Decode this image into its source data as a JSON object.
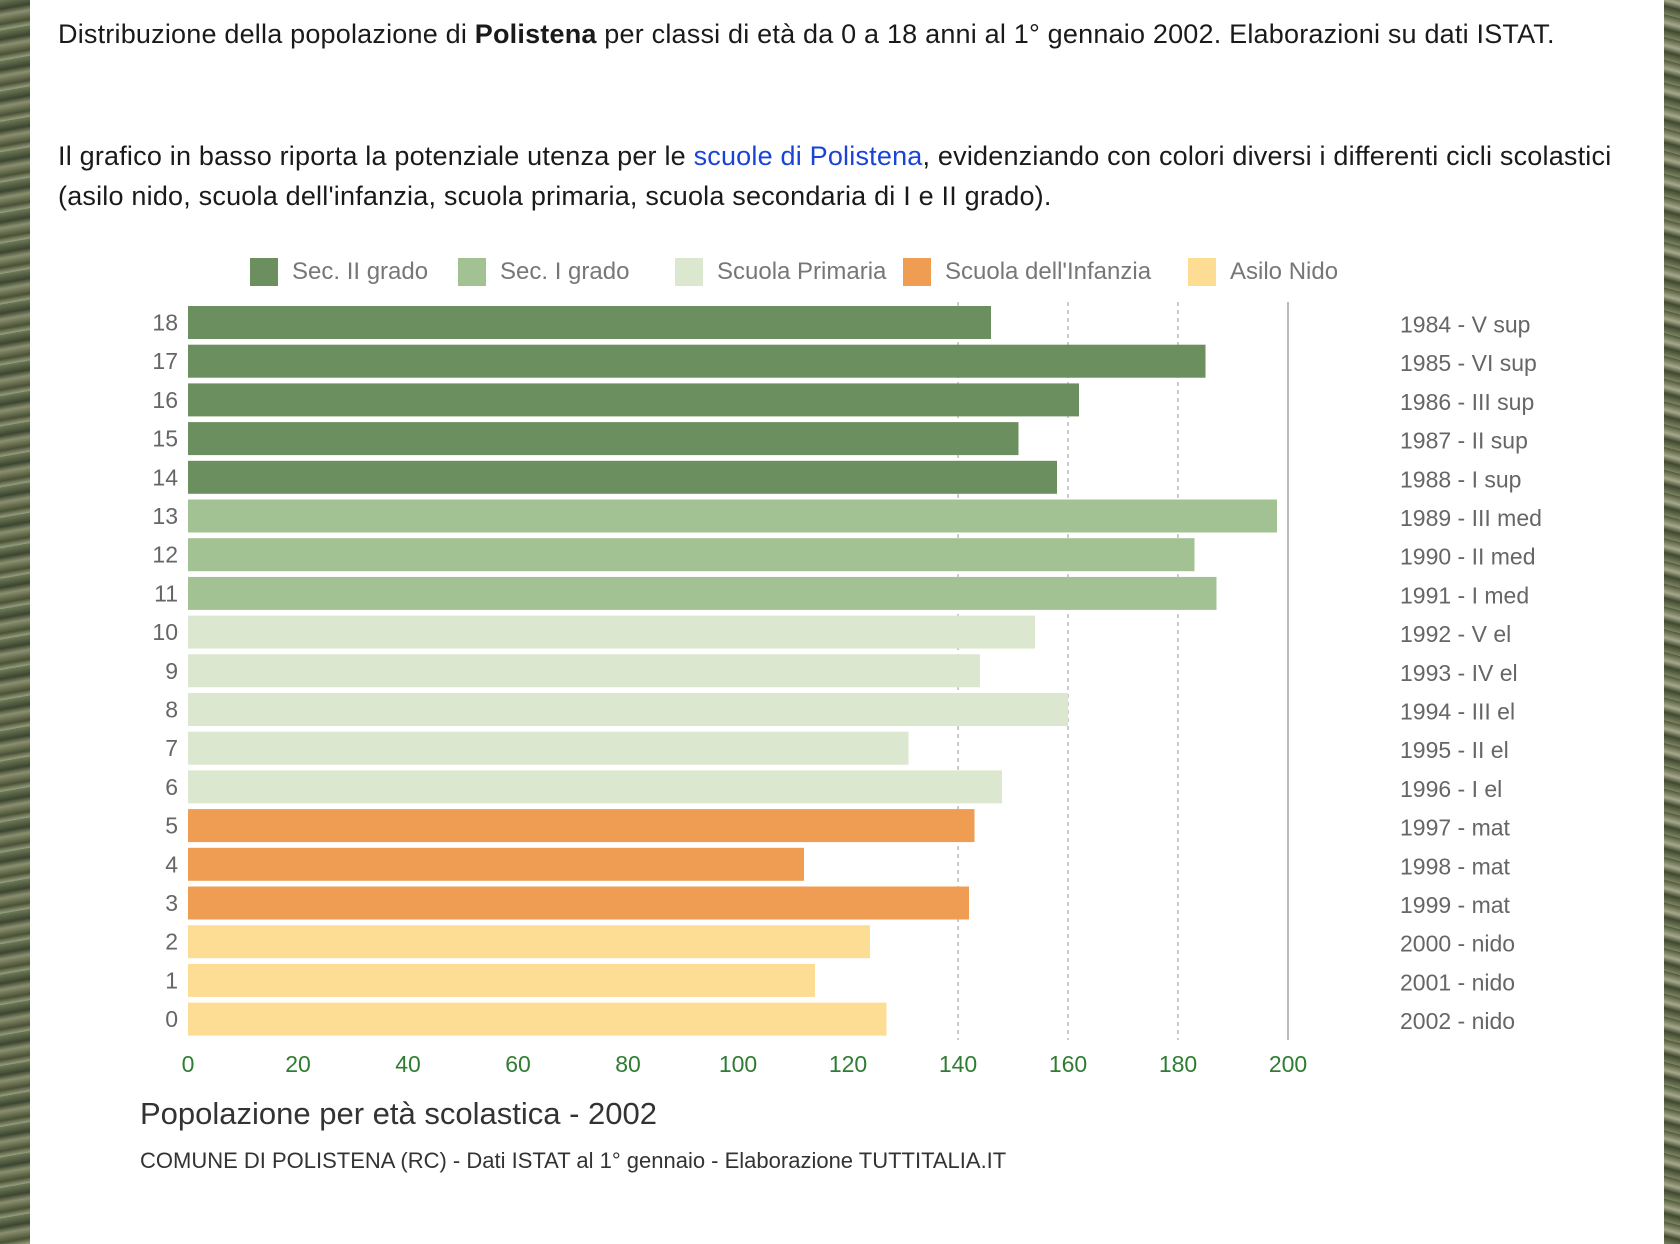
{
  "intro": {
    "p1_a": "Distribuzione della popolazione di ",
    "p1_bold": "Polistena",
    "p1_b": " per classi di età da 0 a 18 anni al 1° gennaio 2002. Elaborazioni su dati ISTAT.",
    "p2_a": "Il grafico in basso riporta la potenziale utenza per le ",
    "p2_link": "scuole di Polistena",
    "p2_b": ", evidenziando con colori diversi i differenti cicli scolastici (asilo nido, scuola dell'infanzia, scuola primaria, scuola secondaria di I e II grado)."
  },
  "chart_data": {
    "type": "bar",
    "orientation": "horizontal",
    "title": "Popolazione per età scolastica - 2002",
    "caption": "COMUNE DI POLISTENA (RC) - Dati ISTAT al 1° gennaio - Elaborazione TUTTITALIA.IT",
    "xlim": [
      0,
      200
    ],
    "xticks": [
      0,
      20,
      40,
      60,
      80,
      100,
      120,
      140,
      160,
      180,
      200
    ],
    "grid": "vertical dashed at 140, 160, 180",
    "legend_position": "top",
    "legend": [
      {
        "label": "Sec. II grado",
        "color": "#6b8f5e"
      },
      {
        "label": "Sec. I grado",
        "color": "#a3c293"
      },
      {
        "label": "Scuola Primaria",
        "color": "#dbe8cf"
      },
      {
        "label": "Scuola dell'Infanzia",
        "color": "#ee9d53"
      },
      {
        "label": "Asilo Nido",
        "color": "#fddd94"
      }
    ],
    "bars": [
      {
        "age": "18",
        "year": "1984 - V sup",
        "value": 146,
        "group": 0
      },
      {
        "age": "17",
        "year": "1985 - VI sup",
        "value": 185,
        "group": 0
      },
      {
        "age": "16",
        "year": "1986 - III sup",
        "value": 162,
        "group": 0
      },
      {
        "age": "15",
        "year": "1987 - II sup",
        "value": 151,
        "group": 0
      },
      {
        "age": "14",
        "year": "1988 - I sup",
        "value": 158,
        "group": 0
      },
      {
        "age": "13",
        "year": "1989 - III med",
        "value": 198,
        "group": 1
      },
      {
        "age": "12",
        "year": "1990 - II med",
        "value": 183,
        "group": 1
      },
      {
        "age": "11",
        "year": "1991 - I med",
        "value": 187,
        "group": 1
      },
      {
        "age": "10",
        "year": "1992 - V el",
        "value": 154,
        "group": 2
      },
      {
        "age": "9",
        "year": "1993 - IV el",
        "value": 144,
        "group": 2
      },
      {
        "age": "8",
        "year": "1994 - III el",
        "value": 160,
        "group": 2
      },
      {
        "age": "7",
        "year": "1995 - II el",
        "value": 131,
        "group": 2
      },
      {
        "age": "6",
        "year": "1996 - I el",
        "value": 148,
        "group": 2
      },
      {
        "age": "5",
        "year": "1997 - mat",
        "value": 143,
        "group": 3
      },
      {
        "age": "4",
        "year": "1998 - mat",
        "value": 112,
        "group": 3
      },
      {
        "age": "3",
        "year": "1999 - mat",
        "value": 142,
        "group": 3
      },
      {
        "age": "2",
        "year": "2000 - nido",
        "value": 124,
        "group": 4
      },
      {
        "age": "1",
        "year": "2001 - nido",
        "value": 114,
        "group": 4
      },
      {
        "age": "0",
        "year": "2002 - nido",
        "value": 127,
        "group": 4
      }
    ]
  }
}
